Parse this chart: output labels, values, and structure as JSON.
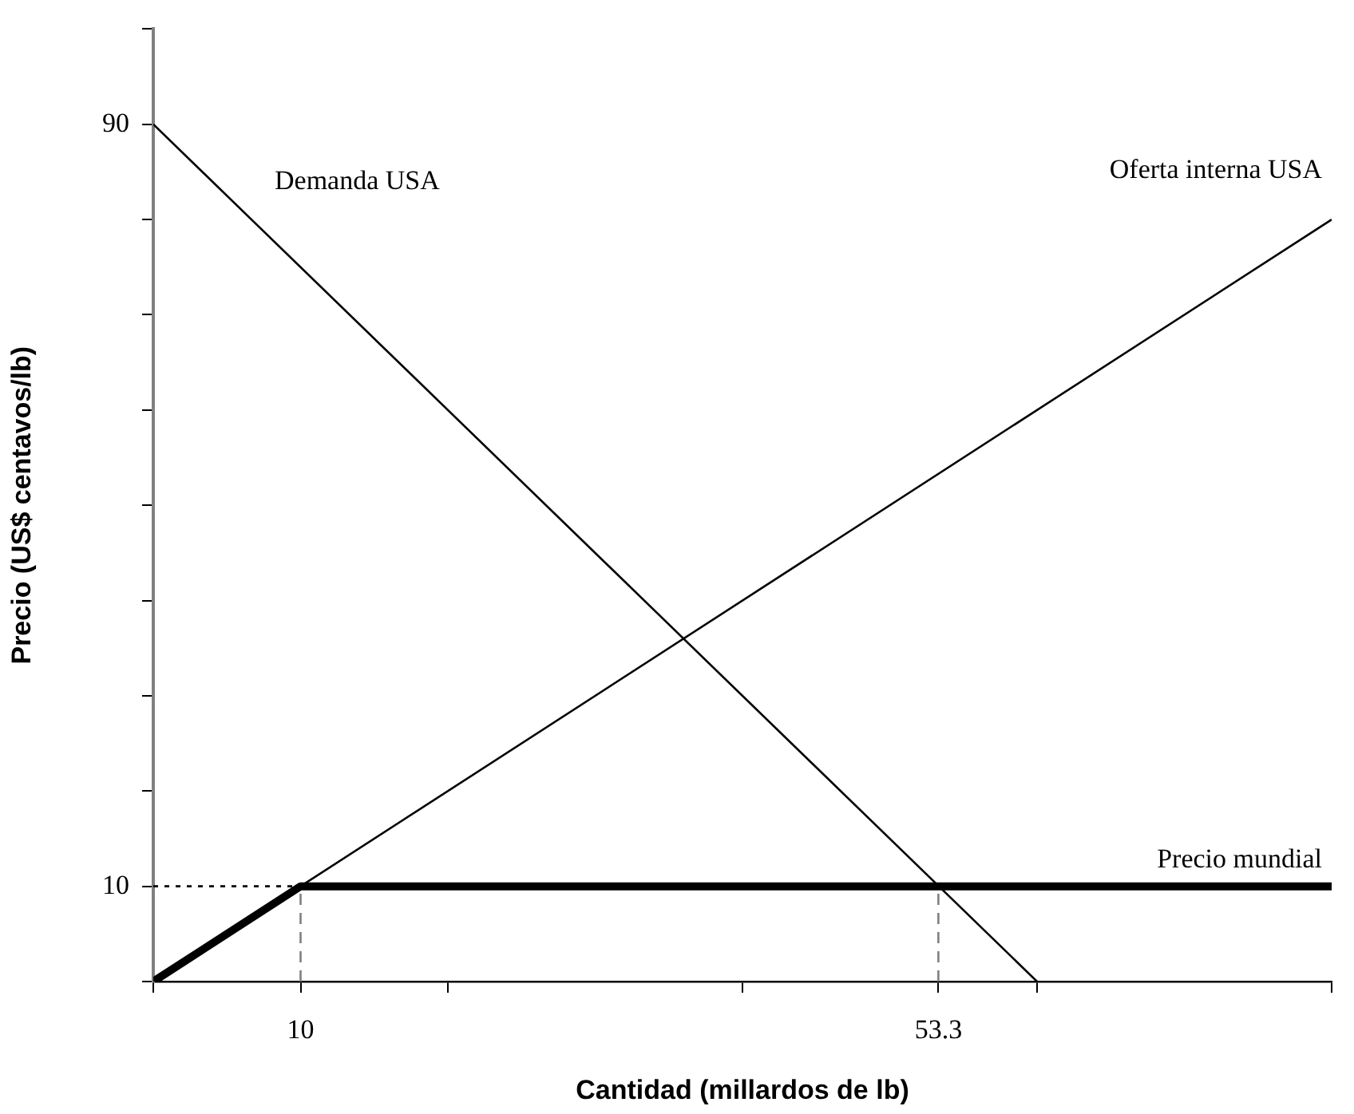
{
  "chart_data": {
    "type": "line",
    "xlabel": "Cantidad (millardos de lb)",
    "ylabel": "Precio (US$ centavos/lb)",
    "xlim": [
      0,
      80
    ],
    "ylim": [
      0,
      100
    ],
    "xticks": [
      {
        "value": 0,
        "label": null
      },
      10,
      {
        "value": 20,
        "label": null
      },
      {
        "value": 40,
        "label": null
      },
      53.3,
      {
        "value": 60,
        "label": null
      },
      {
        "value": 80,
        "label": null
      }
    ],
    "yticks": [
      {
        "value": 0,
        "label": null
      },
      10,
      {
        "value": 20,
        "label": null
      },
      {
        "value": 30,
        "label": null
      },
      {
        "value": 40,
        "label": null
      },
      {
        "value": 50,
        "label": null
      },
      {
        "value": 60,
        "label": null
      },
      {
        "value": 70,
        "label": null
      },
      {
        "value": 80,
        "label": null
      },
      90,
      {
        "value": 100,
        "label": null
      }
    ],
    "grid": false,
    "legend": false,
    "marker": "none",
    "line_style": "solid",
    "series": [
      {
        "name": "Demanda USA",
        "color": "#000000",
        "x": [
          0,
          60
        ],
        "values": [
          90,
          0
        ]
      },
      {
        "name": "Oferta interna USA",
        "color": "#000000",
        "x": [
          0,
          80
        ],
        "values": [
          0,
          80
        ]
      },
      {
        "name": "Precio mundial",
        "color": "#000000",
        "x": [
          0,
          10,
          80
        ],
        "values": [
          0,
          10,
          10
        ]
      },
      {
        "color": "#808080",
        "line_style": "dashed",
        "x": [
          10,
          10
        ],
        "values": [
          0,
          10
        ]
      },
      {
        "color": "#808080",
        "line_style": "dashed",
        "x": [
          53.3,
          53.3
        ],
        "values": [
          0,
          10
        ]
      },
      {
        "color": "#000000",
        "line_style": "dotted",
        "x": [
          0,
          10
        ],
        "values": [
          10,
          10
        ]
      }
    ]
  }
}
